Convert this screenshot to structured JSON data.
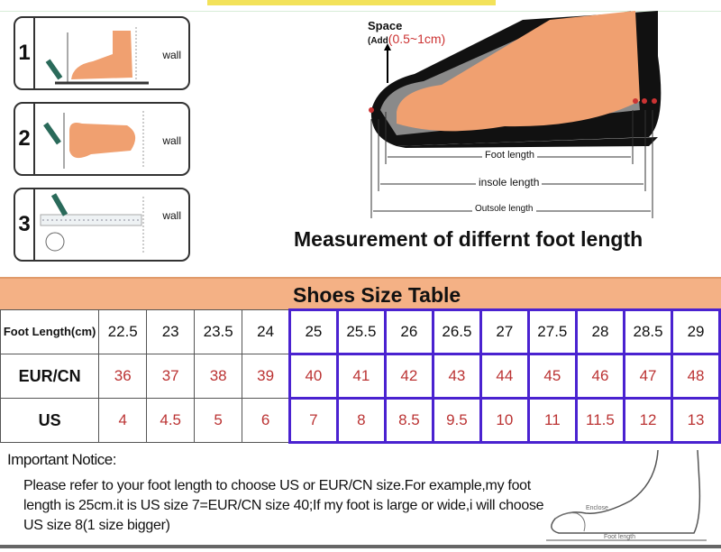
{
  "steps": [
    {
      "number": "1",
      "label": "wall"
    },
    {
      "number": "2",
      "label": "wall"
    },
    {
      "number": "3",
      "label": "wall"
    }
  ],
  "diagram": {
    "space_label": "Space",
    "space_add": "(Add",
    "space_range": "(0.5~1cm)",
    "foot_length": "Foot length",
    "insole_length": "insole length",
    "outsole_length": "Outsole length",
    "title": "Measurement of differnt foot length"
  },
  "table": {
    "title": "Shoes  Size  Table",
    "rows": [
      {
        "label": "Foot Length(cm)",
        "values": [
          "22.5",
          "23",
          "23.5",
          "24",
          "25",
          "25.5",
          "26",
          "26.5",
          "27",
          "27.5",
          "28",
          "28.5",
          "29"
        ]
      },
      {
        "label": "EUR/CN",
        "values": [
          "36",
          "37",
          "38",
          "39",
          "40",
          "41",
          "42",
          "43",
          "44",
          "45",
          "46",
          "47",
          "48"
        ]
      },
      {
        "label": "US",
        "values": [
          "4",
          "4.5",
          "5",
          "6",
          "7",
          "8",
          "8.5",
          "9.5",
          "10",
          "11",
          "11.5",
          "12",
          "13"
        ]
      }
    ],
    "highlight_color": "#4a22d0",
    "header_color": "#f4b185",
    "value_color": "#b33333"
  },
  "notice": {
    "title": "Important Notice:",
    "text": "Please refer to your foot length to choose US or EUR/CN size.For example,my foot length is 25cm.it is US size 7=EUR/CN size 40;If my foot is large or wide,i will choose US size 8(1 size bigger)",
    "enclose": "Enclose",
    "foot_length": "Foot length"
  }
}
